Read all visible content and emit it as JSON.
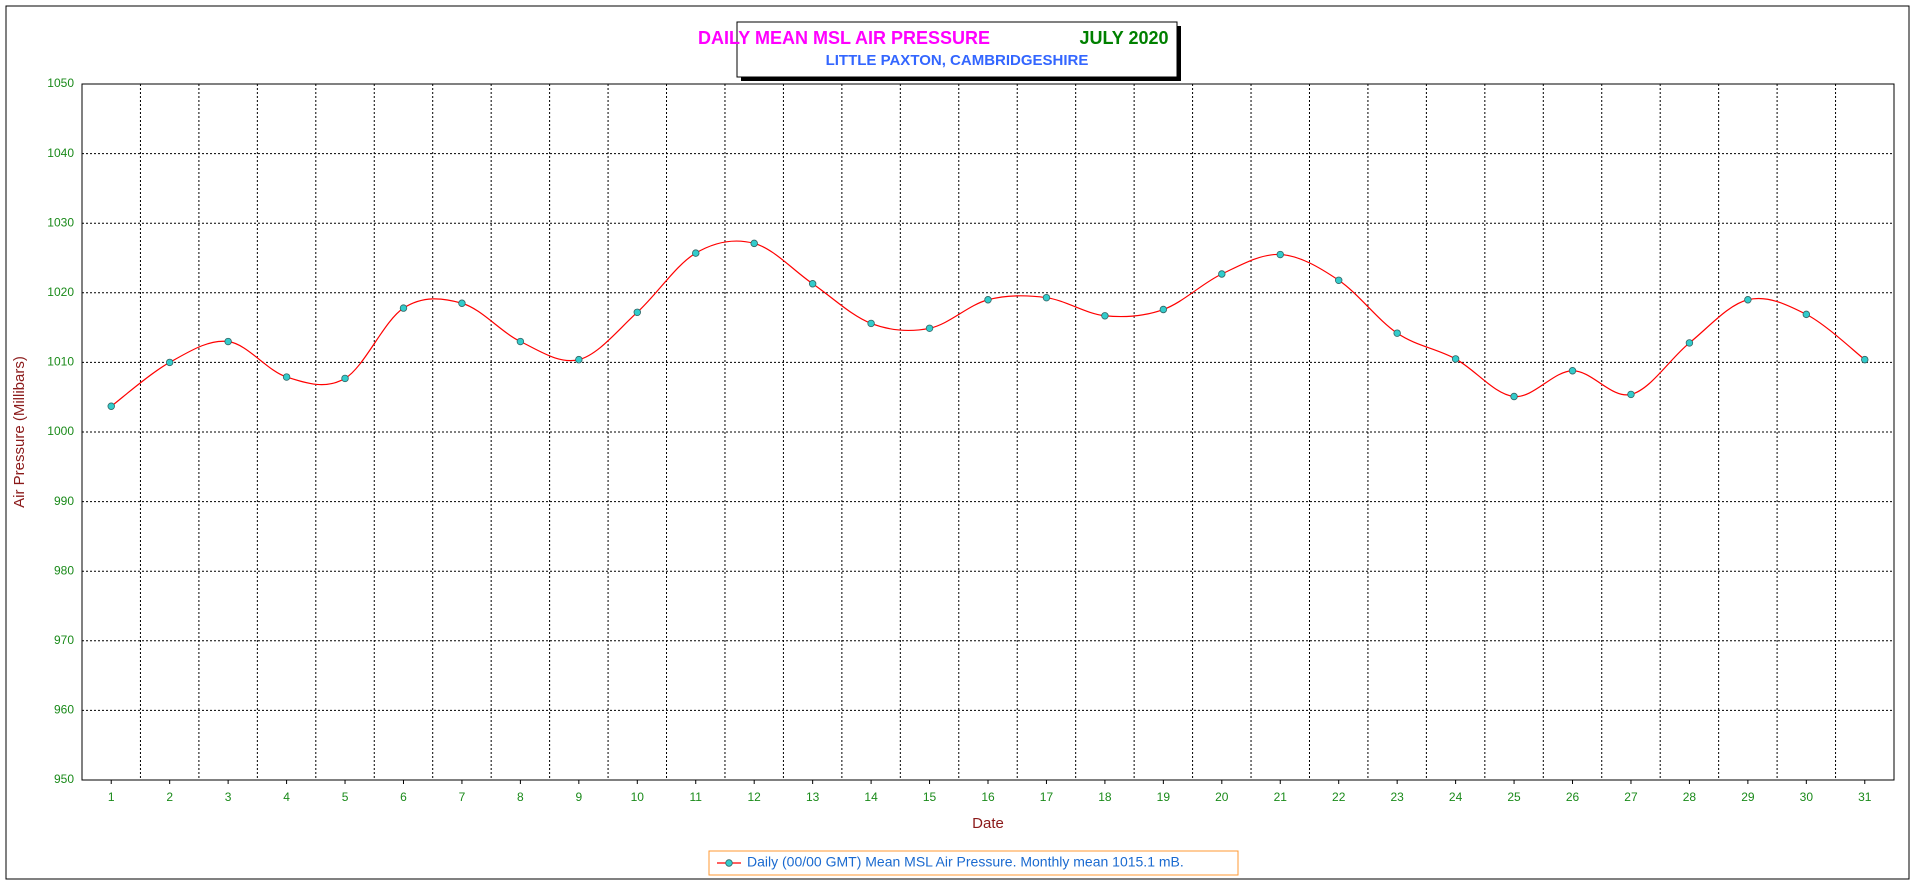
{
  "chart_data": {
    "type": "line",
    "title": "DAILY MEAN MSL AIR PRESSURE",
    "title_period": "JULY 2020",
    "subtitle": "LITTLE PAXTON, CAMBRIDGESHIRE",
    "x_label": "Date",
    "y_label": "Air Pressure (Millibars)",
    "categories": [
      "1",
      "2",
      "3",
      "4",
      "5",
      "6",
      "7",
      "8",
      "9",
      "10",
      "11",
      "12",
      "13",
      "14",
      "15",
      "16",
      "17",
      "18",
      "19",
      "20",
      "21",
      "22",
      "23",
      "24",
      "25",
      "26",
      "27",
      "28",
      "29",
      "30",
      "31"
    ],
    "series": [
      {
        "name": "Daily (00/00 GMT) Mean MSL Air Pressure. Monthly mean 1015.1 mB.",
        "color": "#ff0000",
        "marker_color": "#33cccc",
        "values": [
          1003.7,
          1010.0,
          1013.0,
          1007.9,
          1007.7,
          1017.8,
          1018.5,
          1013.0,
          1010.4,
          1017.2,
          1025.7,
          1027.1,
          1021.3,
          1015.6,
          1014.9,
          1019.0,
          1019.3,
          1016.7,
          1017.6,
          1022.7,
          1025.5,
          1021.8,
          1014.2,
          1010.5,
          1005.1,
          1008.8,
          1005.4,
          1012.8,
          1019.0,
          1016.9,
          1010.4
        ]
      }
    ],
    "ylim": [
      950,
      1050
    ],
    "yticks": [
      950,
      960,
      970,
      980,
      990,
      1000,
      1010,
      1020,
      1030,
      1040,
      1050
    ],
    "grid": true,
    "smooth": true
  }
}
